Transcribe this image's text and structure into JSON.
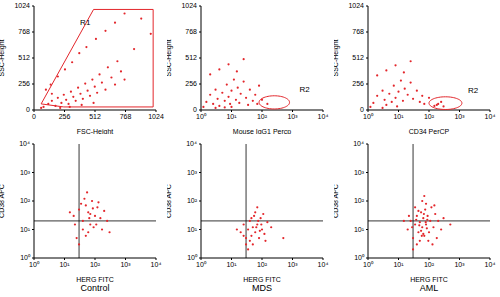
{
  "chart_data": [
    {
      "type": "scatter",
      "xlabel": "FSC-Height",
      "ylabel": "SSC-Height",
      "color": "#e3262b",
      "xlim": [
        0,
        1024
      ],
      "ylim": [
        0,
        1024
      ],
      "xticks": [
        0,
        256,
        512,
        768,
        1024
      ],
      "yticks": [
        0,
        256,
        512,
        768,
        1024
      ],
      "x": [
        120,
        150,
        180,
        200,
        230,
        250,
        270,
        290,
        310,
        330,
        350,
        370,
        390,
        410,
        430,
        450,
        470,
        490,
        510,
        530,
        550,
        570,
        600,
        620,
        650,
        680,
        700,
        730,
        760,
        80,
        60,
        100,
        140,
        200,
        260,
        320,
        380,
        440,
        520,
        600,
        680,
        760,
        840,
        900,
        980,
        220,
        300,
        400,
        500,
        150
      ],
      "values": [
        60,
        90,
        40,
        120,
        70,
        150,
        100,
        60,
        180,
        130,
        90,
        220,
        160,
        110,
        260,
        190,
        140,
        300,
        230,
        170,
        350,
        270,
        200,
        420,
        320,
        250,
        480,
        380,
        300,
        30,
        20,
        200,
        250,
        330,
        400,
        470,
        560,
        620,
        700,
        780,
        860,
        950,
        600,
        900,
        750,
        20,
        30,
        50,
        70,
        160
      ],
      "gate": {
        "label": "R1",
        "shape": "polygon",
        "x": [
          60,
          500,
          1000,
          1000,
          250
        ],
        "y": [
          60,
          990,
          990,
          30,
          30
        ],
        "label_at": [
          430,
          860
        ]
      }
    },
    {
      "type": "scatter",
      "xlabel": "Mouse IgG1 Percp",
      "ylabel": "SSC-Height",
      "color": "#e3262b",
      "log": "x",
      "xlim": [
        1,
        10000
      ],
      "ylim": [
        0,
        1024
      ],
      "xticks": [
        {
          "value": 1,
          "label": "10⁰"
        },
        {
          "value": 10,
          "label": "10¹"
        },
        {
          "value": 100,
          "label": "10²"
        },
        {
          "value": 1000,
          "label": "10³"
        },
        {
          "value": 10000,
          "label": "10⁴"
        }
      ],
      "yticks": [
        0,
        256,
        512,
        768,
        1024
      ],
      "x": [
        1.5,
        2,
        2.5,
        3,
        3.5,
        4,
        5,
        6,
        7,
        8,
        9,
        10,
        12,
        14,
        16,
        18,
        20,
        25,
        30,
        35,
        40,
        50,
        60,
        70,
        1.2,
        2,
        4,
        8,
        15,
        25,
        3,
        6,
        10,
        100,
        150,
        80
      ],
      "values": [
        80,
        150,
        60,
        200,
        110,
        40,
        170,
        90,
        250,
        130,
        60,
        190,
        300,
        100,
        220,
        70,
        160,
        280,
        120,
        50,
        200,
        90,
        150,
        60,
        30,
        350,
        400,
        450,
        380,
        500,
        20,
        25,
        30,
        100,
        60,
        240
      ],
      "gate": {
        "label": "R2",
        "shape": "ellipse",
        "x_range": [
          80,
          800
        ],
        "y_range": [
          10,
          140
        ],
        "label_at": [
          2500,
          210
        ]
      }
    },
    {
      "type": "scatter",
      "xlabel": "CD34 PerCP",
      "ylabel": "SSC-Height",
      "color": "#e3262b",
      "log": "x",
      "xlim": [
        1,
        10000
      ],
      "ylim": [
        0,
        1024
      ],
      "xticks": [
        {
          "value": 1,
          "label": "10⁰"
        },
        {
          "value": 10,
          "label": "10¹"
        },
        {
          "value": 100,
          "label": "10²"
        },
        {
          "value": 1000,
          "label": "10³"
        },
        {
          "value": 10000,
          "label": "10⁴"
        }
      ],
      "yticks": [
        0,
        256,
        512,
        768,
        1024
      ],
      "x": [
        1.5,
        2,
        3,
        3.5,
        4,
        5,
        6,
        7,
        8,
        10,
        12,
        14,
        16,
        20,
        25,
        30,
        40,
        50,
        60,
        1.2,
        2,
        4,
        8,
        15,
        25,
        150,
        200,
        300,
        250,
        180,
        70,
        100,
        3,
        9
      ],
      "values": [
        70,
        140,
        190,
        100,
        50,
        160,
        80,
        240,
        120,
        180,
        290,
        90,
        210,
        150,
        270,
        110,
        190,
        80,
        140,
        30,
        340,
        390,
        440,
        370,
        480,
        40,
        60,
        35,
        80,
        50,
        60,
        120,
        20,
        35
      ],
      "gate": {
        "label": "R2",
        "shape": "ellipse",
        "x_range": [
          100,
          1200
        ],
        "y_range": [
          5,
          130
        ],
        "label_at": [
          2800,
          200
        ]
      }
    },
    {
      "type": "scatter",
      "title": "Control",
      "xlabel": "HERG FITC",
      "ylabel": "CD38 APC",
      "color": "#e3262b",
      "log": true,
      "xlim": [
        1,
        10000
      ],
      "ylim": [
        1,
        10000
      ],
      "xticks": [
        {
          "value": 1,
          "label": "10⁰"
        },
        {
          "value": 10,
          "label": "10¹"
        },
        {
          "value": 100,
          "label": "10²"
        },
        {
          "value": 1000,
          "label": "10³"
        },
        {
          "value": 10000,
          "label": "10⁴"
        }
      ],
      "yticks": [
        {
          "value": 1,
          "label": "10⁰"
        },
        {
          "value": 10,
          "label": "10¹"
        },
        {
          "value": 100,
          "label": "10²"
        },
        {
          "value": 1000,
          "label": "10³"
        },
        {
          "value": 10000,
          "label": "10⁴"
        }
      ],
      "x": [
        20,
        30,
        40,
        50,
        60,
        70,
        80,
        100,
        120,
        150,
        200,
        40,
        60,
        90,
        25,
        35,
        45,
        55,
        70,
        110,
        130,
        170,
        250,
        30,
        50,
        15,
        65,
        85,
        300,
        22
      ],
      "values": [
        30,
        50,
        20,
        70,
        40,
        15,
        100,
        30,
        60,
        25,
        45,
        10,
        8,
        12,
        5,
        80,
        120,
        200,
        35,
        15,
        90,
        10,
        20,
        3,
        6,
        40,
        25,
        55,
        8,
        15
      ],
      "quadrant": {
        "x": 30,
        "y": 20
      }
    },
    {
      "type": "scatter",
      "title": "MDS",
      "xlabel": "HERG FITC",
      "ylabel": "CD38 APC",
      "color": "#e3262b",
      "log": true,
      "xlim": [
        1,
        10000
      ],
      "ylim": [
        1,
        10000
      ],
      "xticks": [
        {
          "value": 1,
          "label": "10⁰"
        },
        {
          "value": 10,
          "label": "10¹"
        },
        {
          "value": 100,
          "label": "10²"
        },
        {
          "value": 1000,
          "label": "10³"
        },
        {
          "value": 10000,
          "label": "10⁴"
        }
      ],
      "yticks": [
        {
          "value": 1,
          "label": "10⁰"
        },
        {
          "value": 10,
          "label": "10¹"
        },
        {
          "value": 100,
          "label": "10²"
        },
        {
          "value": 1000,
          "label": "10³"
        },
        {
          "value": 10000,
          "label": "10⁴"
        }
      ],
      "x": [
        20,
        25,
        30,
        35,
        40,
        45,
        50,
        55,
        60,
        70,
        80,
        90,
        100,
        120,
        150,
        30,
        40,
        50,
        60,
        70,
        35,
        45,
        65,
        85,
        110,
        25,
        200,
        130,
        75,
        95,
        15,
        500
      ],
      "values": [
        8,
        15,
        5,
        10,
        20,
        6,
        12,
        30,
        8,
        15,
        5,
        25,
        10,
        7,
        18,
        3,
        4,
        3,
        40,
        60,
        2,
        25,
        12,
        9,
        35,
        6,
        12,
        4,
        20,
        15,
        10,
        5
      ],
      "quadrant": {
        "x": 30,
        "y": 20
      }
    },
    {
      "type": "scatter",
      "title": "AML",
      "xlabel": "HERG FITC",
      "ylabel": "CD38 APC",
      "color": "#e3262b",
      "log": true,
      "xlim": [
        1,
        10000
      ],
      "ylim": [
        1,
        10000
      ],
      "xticks": [
        {
          "value": 1,
          "label": "10⁰"
        },
        {
          "value": 10,
          "label": "10¹"
        },
        {
          "value": 100,
          "label": "10²"
        },
        {
          "value": 1000,
          "label": "10³"
        },
        {
          "value": 10000,
          "label": "10⁴"
        }
      ],
      "yticks": [
        {
          "value": 1,
          "label": "10⁰"
        },
        {
          "value": 10,
          "label": "10¹"
        },
        {
          "value": 100,
          "label": "10²"
        },
        {
          "value": 1000,
          "label": "10³"
        },
        {
          "value": 10000,
          "label": "10⁴"
        }
      ],
      "x": [
        20,
        25,
        30,
        35,
        40,
        45,
        50,
        55,
        60,
        65,
        70,
        75,
        80,
        90,
        100,
        110,
        120,
        140,
        160,
        180,
        200,
        250,
        300,
        30,
        40,
        50,
        60,
        70,
        80,
        35,
        45,
        55,
        65,
        85,
        95,
        130,
        150,
        22,
        28,
        500,
        15,
        38,
        48,
        58,
        68,
        78,
        88
      ],
      "values": [
        10,
        20,
        5,
        15,
        30,
        8,
        18,
        40,
        12,
        25,
        6,
        50,
        15,
        30,
        8,
        20,
        60,
        12,
        35,
        5,
        20,
        10,
        25,
        2,
        3,
        4,
        100,
        150,
        80,
        60,
        45,
        9,
        7,
        11,
        4,
        3,
        70,
        30,
        12,
        15,
        20,
        22,
        14,
        6,
        35,
        18,
        22
      ],
      "quadrant": {
        "x": 30,
        "y": 20
      }
    }
  ]
}
